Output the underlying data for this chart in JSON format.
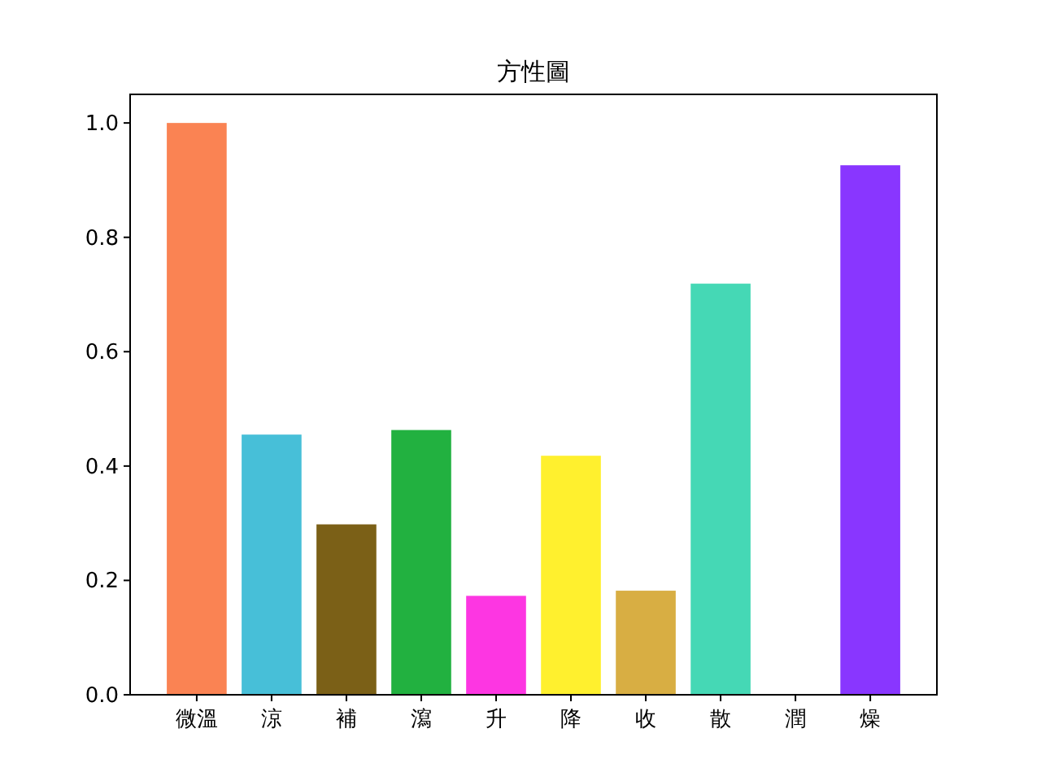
{
  "chart_data": {
    "type": "bar",
    "title": "方性圖",
    "categories": [
      "微溫",
      "涼",
      "補",
      "瀉",
      "升",
      "降",
      "收",
      "散",
      "潤",
      "燥"
    ],
    "values": [
      1.0,
      0.455,
      0.298,
      0.463,
      0.173,
      0.418,
      0.182,
      0.719,
      0,
      0.926
    ],
    "colors": [
      "#fa8353",
      "#47bfd8",
      "#7b6017",
      "#22b140",
      "#fd36e2",
      "#fff02e",
      "#d8ae43",
      "#45d8b5",
      "#5e8a3c",
      "#8936ff"
    ],
    "ylim": [
      0,
      1.05
    ],
    "yticks": [
      {
        "value": 0,
        "label": "0.0"
      },
      {
        "value": 0.2,
        "label": "0.2"
      },
      {
        "value": 0.4,
        "label": "0.4"
      },
      {
        "value": 0.6,
        "label": "0.6"
      },
      {
        "value": 0.8,
        "label": "0.8"
      },
      {
        "value": 1,
        "label": "1.0"
      }
    ],
    "grid": false
  }
}
